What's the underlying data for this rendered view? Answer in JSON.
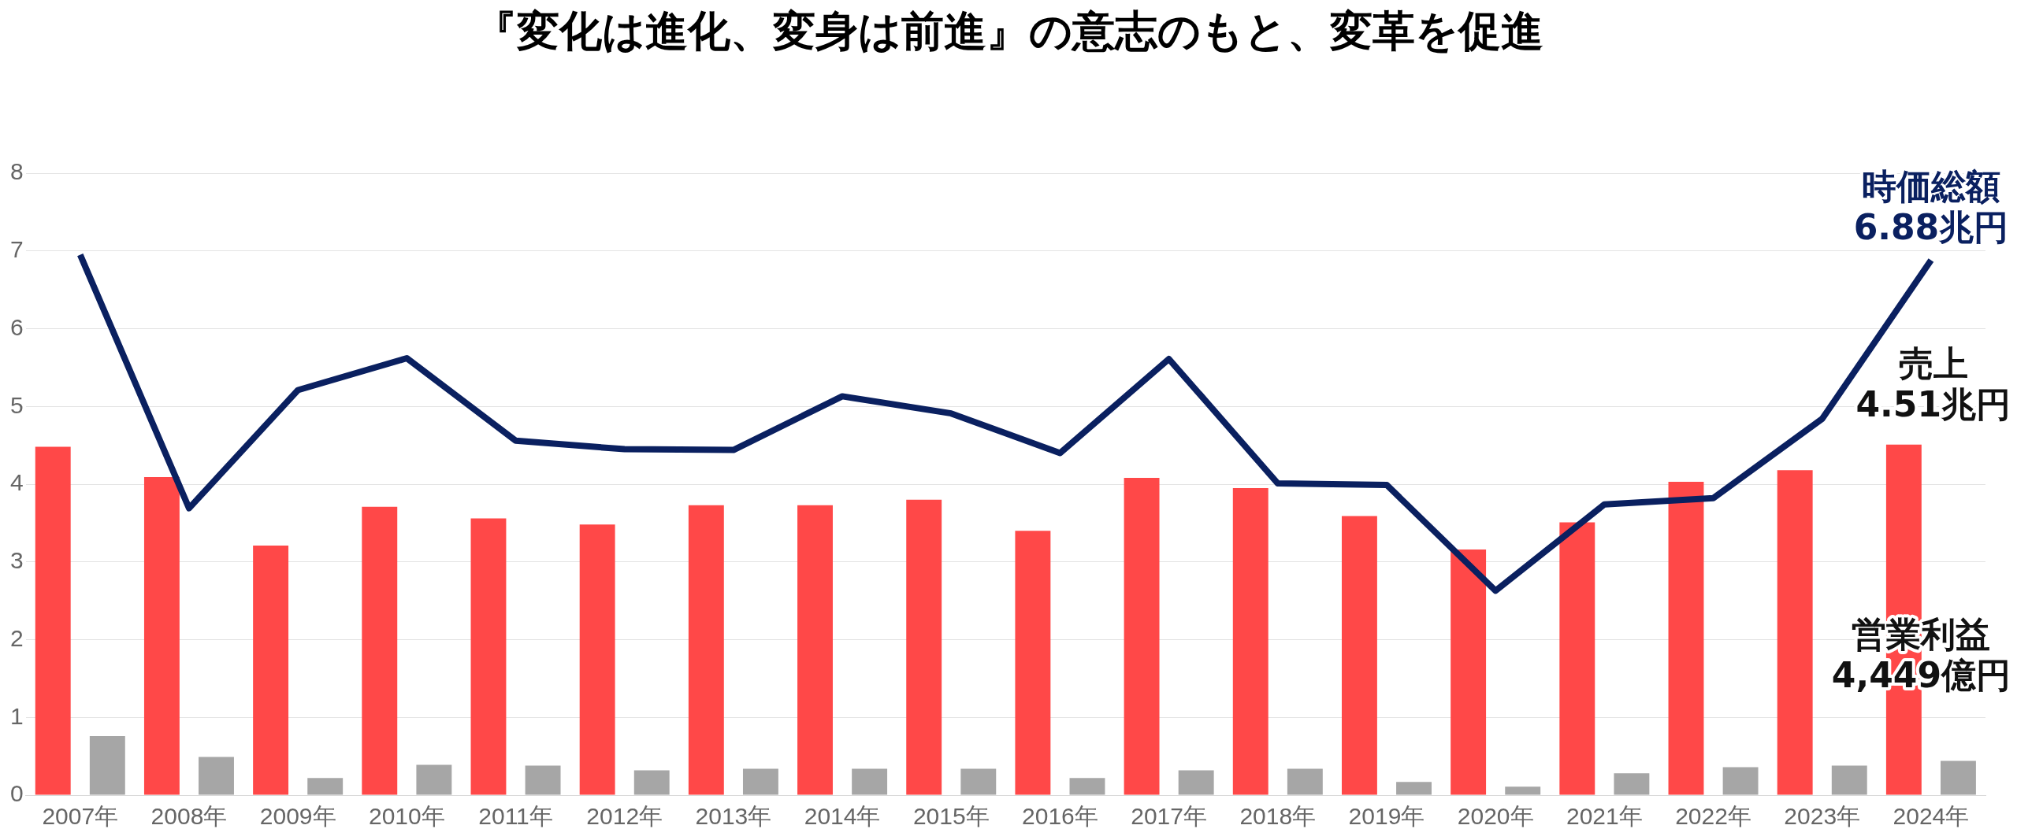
{
  "chart_data": {
    "type": "bar",
    "title": "『変化は進化、変身は前進』の意志のもと、変革を促進",
    "categories": [
      "2007年",
      "2008年",
      "2009年",
      "2010年",
      "2011年",
      "2012年",
      "2013年",
      "2014年",
      "2015年",
      "2016年",
      "2017年",
      "2018年",
      "2019年",
      "2020年",
      "2021年",
      "2022年",
      "2023年",
      "2024年"
    ],
    "series": [
      {
        "color": "#ff4848",
        "values": [
          4.48,
          4.09,
          3.21,
          3.71,
          3.56,
          3.48,
          3.73,
          3.73,
          3.8,
          3.4,
          4.08,
          3.95,
          3.59,
          3.16,
          3.51,
          4.03,
          4.18,
          4.51
        ]
      },
      {
        "color": "#a6a6a6",
        "values": [
          0.76,
          0.49,
          0.22,
          0.39,
          0.38,
          0.32,
          0.34,
          0.34,
          0.34,
          0.22,
          0.32,
          0.34,
          0.17,
          0.11,
          0.28,
          0.36,
          0.38,
          0.44
        ]
      },
      {
        "type": "line",
        "color": "#0a2060",
        "values": [
          6.95,
          3.69,
          5.21,
          5.62,
          4.56,
          4.45,
          4.44,
          5.13,
          4.91,
          4.4,
          5.61,
          4.01,
          3.99,
          2.63,
          3.74,
          3.82,
          4.84,
          6.88
        ]
      }
    ],
    "ylim": [
      0,
      8
    ],
    "yticks": [
      0,
      1,
      2,
      3,
      4,
      5,
      6,
      7,
      8
    ],
    "grid": "y",
    "legend": false,
    "annotations": [
      {
        "text": "時価総額\n6.88兆円",
        "x": "2024年",
        "y": 6.88
      },
      "売上\n4.51兆円",
      "営業利益\n4,449億円"
    ]
  }
}
